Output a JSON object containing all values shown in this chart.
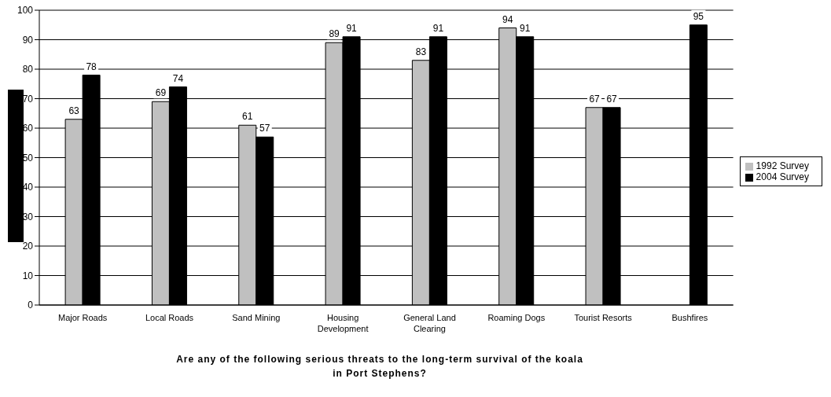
{
  "chart_data": {
    "type": "bar",
    "xlabel": "Are any of the following serious threats to the long-term survival of the koala in Port Stephens?",
    "categories": [
      "Major Roads",
      "Local Roads",
      "Sand Mining",
      "Housing Development",
      "General Land Clearing",
      "Roaming Dogs",
      "Tourist Resorts",
      "Bushfires"
    ],
    "series": [
      {
        "name": "1992 Survey",
        "color": "#c0c0c0",
        "values": [
          63,
          69,
          61,
          89,
          83,
          94,
          67,
          null
        ]
      },
      {
        "name": "2004 Survey",
        "color": "#000000",
        "values": [
          78,
          74,
          57,
          91,
          91,
          91,
          67,
          95
        ]
      }
    ],
    "ylim": [
      0,
      100
    ],
    "yticks": [
      0,
      10,
      20,
      30,
      40,
      50,
      60,
      70,
      80,
      90,
      100
    ],
    "grid": "y",
    "legend": "right",
    "data_labels": true
  }
}
